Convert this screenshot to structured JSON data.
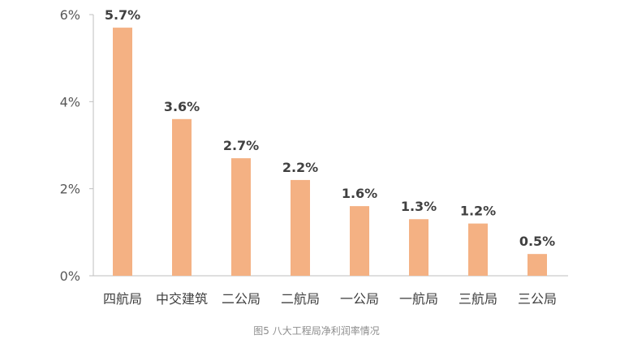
{
  "chart_data": {
    "type": "bar",
    "categories": [
      "四航局",
      "中交建筑",
      "二公局",
      "二航局",
      "一公局",
      "一航局",
      "三航局",
      "三公局"
    ],
    "values": [
      5.7,
      3.6,
      2.7,
      2.2,
      1.6,
      1.3,
      1.2,
      0.5
    ],
    "value_labels": [
      "5.7%",
      "3.6%",
      "2.7%",
      "2.2%",
      "1.6%",
      "1.3%",
      "1.2%",
      "0.5%"
    ],
    "y_ticks": [
      0,
      2,
      4,
      6
    ],
    "y_tick_labels": [
      "0%",
      "2%",
      "4%",
      "6%"
    ],
    "ylim": [
      0,
      6
    ],
    "title": "",
    "xlabel": "",
    "ylabel": "",
    "grid": false,
    "bar_color": "#F4B183",
    "axis_color": "#bfbfbf"
  },
  "caption": "图5  八大工程局净利润率情况"
}
